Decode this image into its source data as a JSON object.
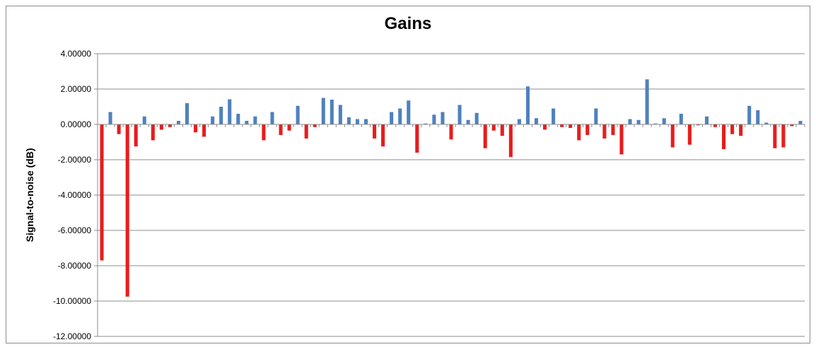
{
  "chart_data": {
    "type": "bar",
    "title": "Gains",
    "xlabel": "",
    "ylabel": "Signal-to-noise (dB)",
    "ylim": [
      -12,
      4
    ],
    "yticks": [
      4,
      2,
      0,
      -2,
      -4,
      -6,
      -8,
      -10,
      -12
    ],
    "ytick_labels": [
      "4.00000",
      "2.00000",
      "0.00000",
      "-2.00000",
      "-4.00000",
      "-6.00000",
      "-8.00000",
      "-10.00000",
      "-12.00000"
    ],
    "grid": true,
    "legend": "none",
    "colors": {
      "positive": "#4f81bd",
      "negative": "#e81c1c"
    },
    "values": [
      -7.7,
      0.7,
      -0.55,
      -9.75,
      -1.25,
      0.45,
      -0.9,
      -0.3,
      -0.15,
      0.2,
      1.2,
      -0.45,
      -0.7,
      0.45,
      1.0,
      1.42,
      0.6,
      0.2,
      0.45,
      -0.9,
      0.7,
      -0.6,
      -0.35,
      1.05,
      -0.8,
      -0.15,
      1.5,
      1.4,
      1.1,
      0.4,
      0.3,
      0.3,
      -0.8,
      -1.25,
      0.7,
      0.9,
      1.35,
      -1.6,
      0.05,
      0.55,
      0.7,
      -0.85,
      1.1,
      0.25,
      0.65,
      -1.35,
      -0.35,
      -0.65,
      -1.85,
      0.3,
      2.15,
      0.35,
      -0.3,
      0.9,
      -0.15,
      -0.2,
      -0.9,
      -0.6,
      0.9,
      -0.8,
      -0.6,
      -1.7,
      0.3,
      0.25,
      2.55,
      0.05,
      0.35,
      -1.3,
      0.6,
      -1.15,
      -0.05,
      0.45,
      -0.15,
      -1.4,
      -0.55,
      -0.65,
      1.05,
      0.8,
      0.1,
      -1.35,
      -1.3,
      -0.1,
      0.2
    ]
  }
}
